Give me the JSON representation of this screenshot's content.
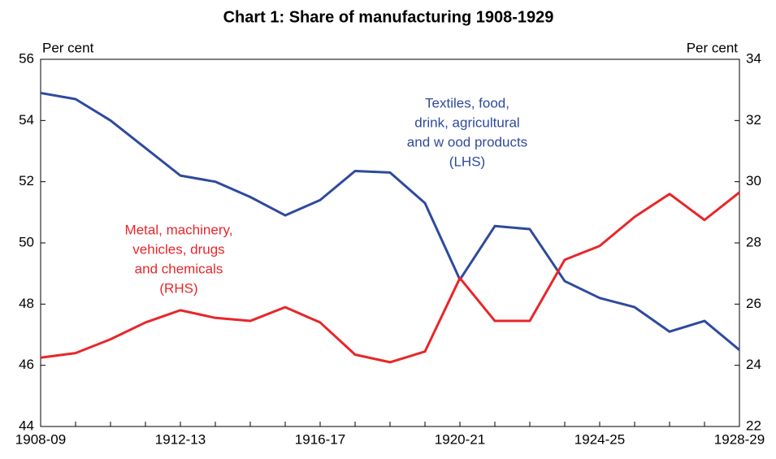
{
  "chart_data": {
    "type": "line",
    "title": "Chart 1: Share of manufacturing 1908-1929",
    "y_label": "Per cent",
    "y2_label": "Per cent",
    "categories": [
      "1908-09",
      null,
      null,
      null,
      "1912-13",
      null,
      null,
      null,
      "1916-17",
      null,
      null,
      null,
      "1920-21",
      null,
      null,
      null,
      "1924-25",
      null,
      null,
      null,
      "1928-29"
    ],
    "series": [
      {
        "name": "Textiles, food, drink, agricultural and wood products (LHS)",
        "color": "#2e4a9e",
        "axis": "y",
        "values": [
          54.9,
          54.7,
          54.0,
          53.1,
          52.2,
          52.0,
          51.5,
          50.9,
          51.4,
          52.35,
          52.3,
          51.3,
          48.8,
          50.55,
          50.45,
          48.75,
          48.2,
          47.9,
          47.1,
          47.45,
          46.5
        ]
      },
      {
        "name": "Metal, machinery, vehicles, drugs and chemicals (RHS)",
        "color": "#e8262a",
        "axis": "y2",
        "values": [
          24.25,
          24.4,
          24.85,
          25.4,
          25.8,
          25.55,
          25.45,
          25.9,
          25.4,
          24.35,
          24.1,
          24.45,
          26.85,
          25.45,
          25.45,
          27.45,
          27.9,
          28.85,
          29.6,
          28.75,
          29.65
        ]
      }
    ],
    "annotations": [
      {
        "lines": [
          "Textiles, food,",
          "drink, agricultural",
          "and w ood products",
          "(LHS)"
        ],
        "color": "#2e4a9e"
      },
      {
        "lines": [
          "Metal, machinery,",
          "vehicles, drugs",
          "and chemicals",
          "(RHS)"
        ],
        "color": "#e8262a"
      }
    ],
    "ylim": [
      44,
      56
    ],
    "yticks": [
      44,
      46,
      48,
      50,
      52,
      54,
      56
    ],
    "y2lim": [
      22,
      34
    ],
    "y2ticks": [
      22,
      24,
      26,
      28,
      30,
      32,
      34
    ],
    "grid": false
  }
}
